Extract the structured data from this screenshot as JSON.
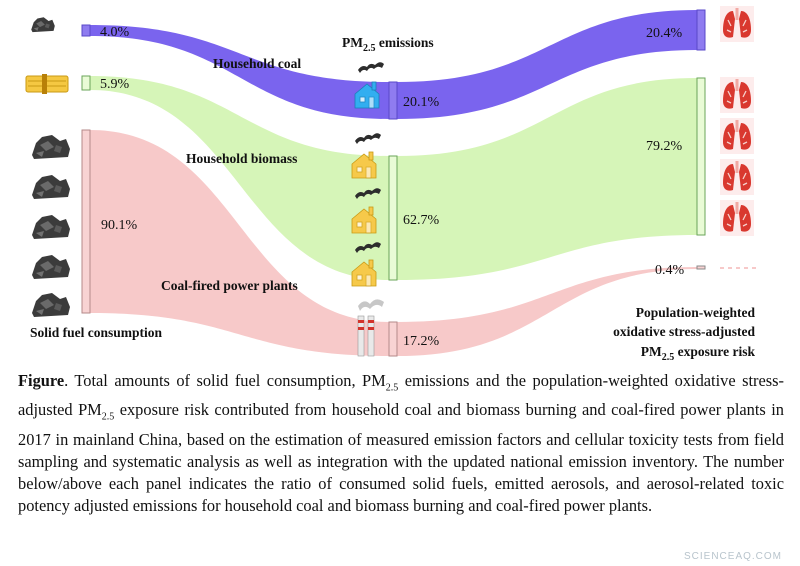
{
  "colors": {
    "household_coal": "#7a64ee",
    "household_biomass": "#d6f5b8",
    "power_plants": "#f7c9c9",
    "bar_coal": "#8f7cf0",
    "bar_biomass": "#e9fbd6",
    "bar_power": "#f8d3d3",
    "icon_house_coal": "#32aef0",
    "icon_house_biomass": "#f6c94a",
    "icon_lung": "#d9382f"
  },
  "headers": {
    "pm_prefix": "PM",
    "pm_sub": "2.5",
    "pm_suffix": " emissions",
    "consumption": "Solid fuel consumption",
    "risk_line1": "Population-weighted",
    "risk_line2": "oxidative stress-adjusted",
    "risk_line3_prefix": "PM",
    "risk_line3_sub": "2.5",
    "risk_line3_suffix": " exposure risk"
  },
  "flow_labels": {
    "household_coal": "Household coal",
    "household_biomass": "Household biomass",
    "power_plants": "Coal-fired power plants"
  },
  "values": {
    "consumption": {
      "household_coal": "4.0%",
      "household_biomass": "5.9%",
      "power_plants": "90.1%"
    },
    "emissions": {
      "household_coal": "20.1%",
      "household_biomass": "62.7%",
      "power_plants": "17.2%"
    },
    "risk": {
      "household_coal": "20.4%",
      "household_biomass": "79.2%",
      "power_plants": "0.4%"
    }
  },
  "icons": {
    "coal_lump": "coal-lump-icon",
    "biomass_bundle": "biomass-bundle-icon",
    "house": "house-smoke-icon",
    "factory": "power-plant-icon",
    "lung": "lung-icon"
  },
  "caption": {
    "figure_label": "Figure",
    "text_1": ". Total amounts of solid fuel consumption, PM",
    "sub_1": "2.5",
    "text_2": " emissions and the population-weighted oxidative stress-adjusted PM",
    "sub_2": "2.5",
    "text_3": " exposure risk contributed from household coal and biomass burning and coal-fired power plants in 2017 in mainland China, based on the estimation of measured emission factors and cellular toxicity tests from field sampling and systematic analysis as well as integration with the updated national emission inventory. The number below/above each panel indicates the ratio of consumed solid fuels, emitted aerosols, and aerosol-related toxic potency adjusted emissions for household coal and biomass burning and coal-fired power plants."
  },
  "watermark": "SCIENCEAQ.COM"
}
